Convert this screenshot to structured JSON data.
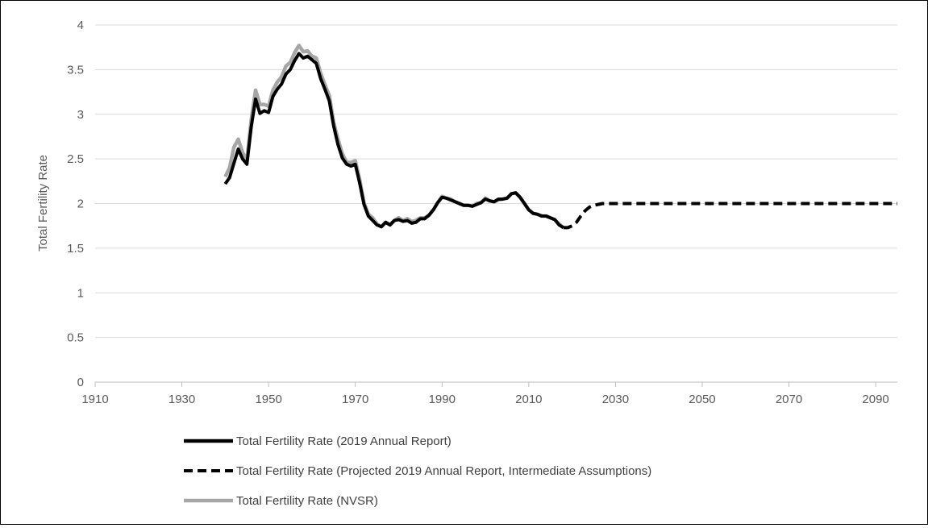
{
  "chart_data": {
    "type": "line",
    "title": "",
    "xlabel": "",
    "ylabel": "Total Fertility Rate",
    "xlim": [
      1910,
      2095
    ],
    "ylim": [
      0,
      4
    ],
    "x_ticks": [
      1910,
      1930,
      1950,
      1970,
      1990,
      2010,
      2030,
      2050,
      2070,
      2090
    ],
    "y_ticks": [
      0,
      0.5,
      1,
      1.5,
      2,
      2.5,
      3,
      3.5,
      4
    ],
    "x_tick_labels": [
      "1910",
      "1930",
      "1950",
      "1970",
      "1990",
      "2010",
      "2030",
      "2050",
      "2070",
      "2090"
    ],
    "y_tick_labels": [
      "0",
      "0.5",
      "1",
      "1.5",
      "2",
      "2.5",
      "3",
      "3.5",
      "4"
    ],
    "grid": "horizontal",
    "legend_position": "bottom",
    "series": [
      {
        "name": "Total Fertility Rate (2019 Annual Report)",
        "color": "#000000",
        "style": "solid",
        "points": [
          [
            1940,
            2.22
          ],
          [
            1941,
            2.29
          ],
          [
            1942,
            2.45
          ],
          [
            1943,
            2.61
          ],
          [
            1944,
            2.5
          ],
          [
            1945,
            2.44
          ],
          [
            1946,
            2.86
          ],
          [
            1947,
            3.17
          ],
          [
            1948,
            3.01
          ],
          [
            1949,
            3.04
          ],
          [
            1950,
            3.02
          ],
          [
            1951,
            3.2
          ],
          [
            1952,
            3.28
          ],
          [
            1953,
            3.34
          ],
          [
            1954,
            3.45
          ],
          [
            1955,
            3.5
          ],
          [
            1956,
            3.6
          ],
          [
            1957,
            3.68
          ],
          [
            1958,
            3.63
          ],
          [
            1959,
            3.65
          ],
          [
            1960,
            3.61
          ],
          [
            1961,
            3.57
          ],
          [
            1962,
            3.4
          ],
          [
            1963,
            3.28
          ],
          [
            1964,
            3.15
          ],
          [
            1965,
            2.87
          ],
          [
            1966,
            2.66
          ],
          [
            1967,
            2.51
          ],
          [
            1968,
            2.44
          ],
          [
            1969,
            2.42
          ],
          [
            1970,
            2.44
          ],
          [
            1971,
            2.23
          ],
          [
            1972,
            1.99
          ],
          [
            1973,
            1.86
          ],
          [
            1974,
            1.81
          ],
          [
            1975,
            1.76
          ],
          [
            1976,
            1.74
          ],
          [
            1977,
            1.79
          ],
          [
            1978,
            1.76
          ],
          [
            1979,
            1.81
          ],
          [
            1980,
            1.82
          ],
          [
            1981,
            1.8
          ],
          [
            1982,
            1.81
          ],
          [
            1983,
            1.78
          ],
          [
            1984,
            1.79
          ],
          [
            1985,
            1.83
          ],
          [
            1986,
            1.83
          ],
          [
            1987,
            1.87
          ],
          [
            1988,
            1.93
          ],
          [
            1989,
            2.01
          ],
          [
            1990,
            2.07
          ],
          [
            1991,
            2.06
          ],
          [
            1992,
            2.04
          ],
          [
            1993,
            2.02
          ],
          [
            1994,
            2.0
          ],
          [
            1995,
            1.98
          ],
          [
            1996,
            1.98
          ],
          [
            1997,
            1.97
          ],
          [
            1998,
            1.99
          ],
          [
            1999,
            2.01
          ],
          [
            2000,
            2.05
          ],
          [
            2001,
            2.03
          ],
          [
            2002,
            2.02
          ],
          [
            2003,
            2.05
          ],
          [
            2004,
            2.05
          ],
          [
            2005,
            2.06
          ],
          [
            2006,
            2.11
          ],
          [
            2007,
            2.12
          ],
          [
            2008,
            2.07
          ],
          [
            2009,
            2.0
          ],
          [
            2010,
            1.93
          ],
          [
            2011,
            1.89
          ],
          [
            2012,
            1.88
          ],
          [
            2013,
            1.86
          ],
          [
            2014,
            1.86
          ],
          [
            2015,
            1.84
          ],
          [
            2016,
            1.82
          ],
          [
            2017,
            1.76
          ],
          [
            2018,
            1.73
          ]
        ]
      },
      {
        "name": "Total Fertility Rate (Projected 2019 Annual Report, Intermediate Assumptions)",
        "color": "#000000",
        "style": "dashed",
        "points": [
          [
            2018,
            1.73
          ],
          [
            2019,
            1.73
          ],
          [
            2020,
            1.75
          ],
          [
            2021,
            1.79
          ],
          [
            2022,
            1.86
          ],
          [
            2023,
            1.92
          ],
          [
            2024,
            1.96
          ],
          [
            2025,
            1.98
          ],
          [
            2026,
            1.99
          ],
          [
            2027,
            2.0
          ],
          [
            2030,
            2.0
          ],
          [
            2040,
            2.0
          ],
          [
            2050,
            2.0
          ],
          [
            2060,
            2.0
          ],
          [
            2070,
            2.0
          ],
          [
            2080,
            2.0
          ],
          [
            2090,
            2.0
          ],
          [
            2095,
            2.0
          ]
        ]
      },
      {
        "name": "Total Fertility Rate (NVSR)",
        "color": "#a6a6a6",
        "style": "solid",
        "points": [
          [
            1940,
            2.3
          ],
          [
            1941,
            2.4
          ],
          [
            1942,
            2.63
          ],
          [
            1943,
            2.72
          ],
          [
            1944,
            2.57
          ],
          [
            1945,
            2.49
          ],
          [
            1946,
            2.94
          ],
          [
            1947,
            3.27
          ],
          [
            1948,
            3.11
          ],
          [
            1949,
            3.11
          ],
          [
            1950,
            3.09
          ],
          [
            1951,
            3.27
          ],
          [
            1952,
            3.36
          ],
          [
            1953,
            3.42
          ],
          [
            1954,
            3.54
          ],
          [
            1955,
            3.58
          ],
          [
            1956,
            3.69
          ],
          [
            1957,
            3.77
          ],
          [
            1958,
            3.7
          ],
          [
            1959,
            3.71
          ],
          [
            1960,
            3.65
          ],
          [
            1961,
            3.63
          ],
          [
            1962,
            3.46
          ],
          [
            1963,
            3.33
          ],
          [
            1964,
            3.21
          ],
          [
            1965,
            2.91
          ],
          [
            1966,
            2.72
          ],
          [
            1967,
            2.56
          ],
          [
            1968,
            2.46
          ],
          [
            1969,
            2.46
          ],
          [
            1970,
            2.48
          ],
          [
            1971,
            2.27
          ],
          [
            1972,
            2.01
          ],
          [
            1973,
            1.88
          ],
          [
            1974,
            1.84
          ],
          [
            1975,
            1.77
          ],
          [
            1976,
            1.74
          ],
          [
            1977,
            1.79
          ],
          [
            1978,
            1.76
          ],
          [
            1979,
            1.81
          ],
          [
            1980,
            1.84
          ],
          [
            1981,
            1.81
          ],
          [
            1982,
            1.83
          ],
          [
            1983,
            1.8
          ],
          [
            1984,
            1.81
          ],
          [
            1985,
            1.84
          ],
          [
            1986,
            1.84
          ],
          [
            1987,
            1.87
          ],
          [
            1988,
            1.93
          ],
          [
            1989,
            2.01
          ],
          [
            1990,
            2.08
          ],
          [
            1991,
            2.06
          ],
          [
            1992,
            2.05
          ],
          [
            1993,
            2.02
          ],
          [
            1994,
            2.0
          ],
          [
            1995,
            1.98
          ],
          [
            1996,
            1.98
          ],
          [
            1997,
            1.97
          ],
          [
            1998,
            2.0
          ],
          [
            1999,
            2.01
          ],
          [
            2000,
            2.06
          ],
          [
            2001,
            2.03
          ],
          [
            2002,
            2.02
          ],
          [
            2003,
            2.04
          ],
          [
            2004,
            2.05
          ],
          [
            2005,
            2.06
          ],
          [
            2006,
            2.11
          ],
          [
            2007,
            2.12
          ],
          [
            2008,
            2.07
          ],
          [
            2009,
            2.0
          ],
          [
            2010,
            1.93
          ],
          [
            2011,
            1.89
          ],
          [
            2012,
            1.88
          ],
          [
            2013,
            1.86
          ],
          [
            2014,
            1.86
          ],
          [
            2015,
            1.84
          ],
          [
            2016,
            1.82
          ],
          [
            2017,
            1.77
          ],
          [
            2018,
            1.73
          ]
        ]
      }
    ]
  }
}
